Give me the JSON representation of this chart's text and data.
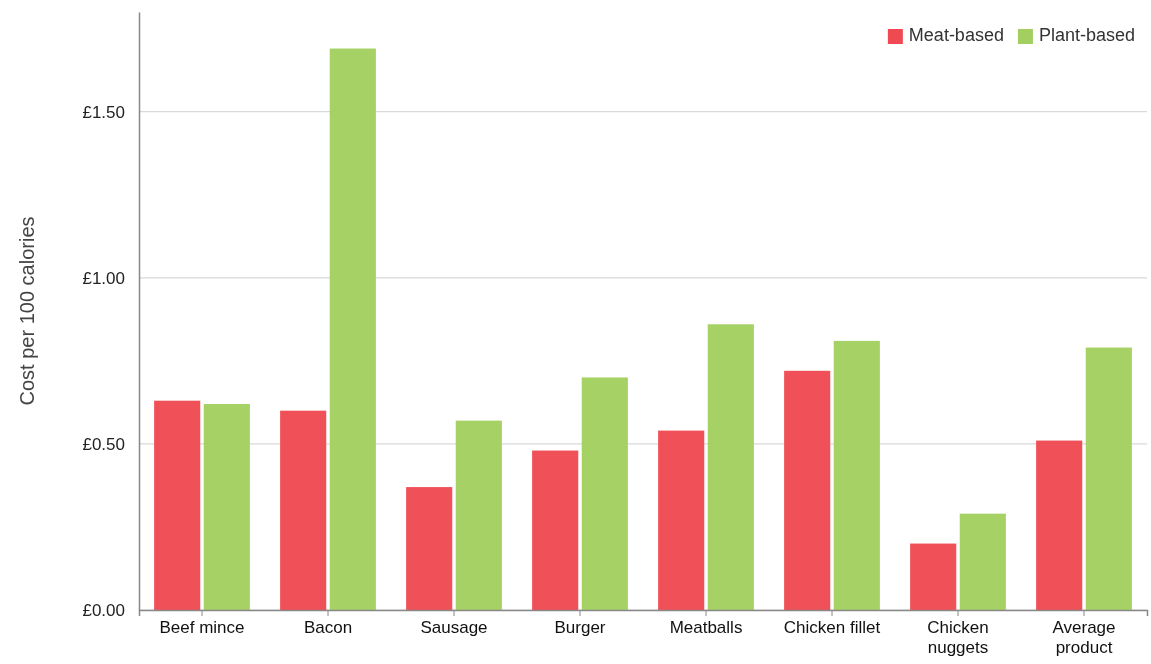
{
  "chart_data": {
    "type": "bar",
    "ylabel": "Cost per 100 calories",
    "categories": [
      "Beef mince",
      "Bacon",
      "Sausage",
      "Burger",
      "Meatballs",
      "Chicken fillet",
      "Chicken nuggets",
      "Average product"
    ],
    "series": [
      {
        "name": "Meat-based",
        "color": "#ef4a52",
        "values": [
          0.63,
          0.6,
          0.37,
          0.48,
          0.54,
          0.72,
          0.2,
          0.51
        ]
      },
      {
        "name": "Plant-based",
        "color": "#a2cf60",
        "values": [
          0.62,
          1.69,
          0.57,
          0.7,
          0.86,
          0.81,
          0.29,
          0.79
        ]
      }
    ],
    "ylim": [
      0,
      1.8
    ],
    "yticks": [
      {
        "value": 0,
        "label": "£0.00"
      },
      {
        "value": 0.5,
        "label": "£0.50"
      },
      {
        "value": 1,
        "label": "£1.00"
      },
      {
        "value": 1.5,
        "label": "£1.50"
      }
    ],
    "grid": "y",
    "legend": "top right"
  }
}
